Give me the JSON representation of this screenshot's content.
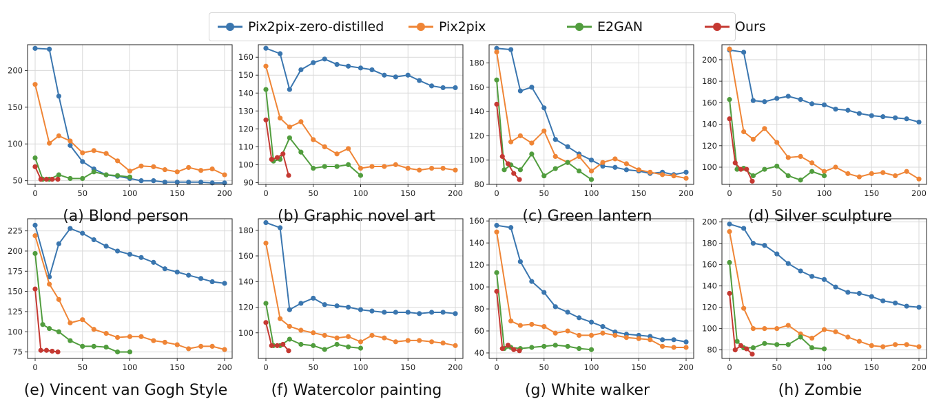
{
  "legend": [
    {
      "name": "Pix2pix-zero-distilled",
      "color": "#3a76af"
    },
    {
      "name": "Pix2pix",
      "color": "#ef8536"
    },
    {
      "name": "E2GAN",
      "color": "#519d3e"
    },
    {
      "name": "Ours",
      "color": "#c53932"
    }
  ],
  "chart_data": [
    {
      "type": "line",
      "title": "(a) Blond person",
      "ylim": [
        45,
        235
      ],
      "yticks": [
        50,
        100,
        150,
        200
      ],
      "xlim": [
        -8,
        208
      ],
      "xticks": [
        0,
        50,
        100,
        150,
        200
      ],
      "grid": true,
      "series": [
        {
          "name": "Pix2pix-zero-distilled",
          "x": [
            0,
            15,
            25,
            37,
            50,
            62,
            75,
            87,
            100,
            112,
            125,
            137,
            150,
            162,
            175,
            187,
            200
          ],
          "y": [
            230,
            229,
            165,
            98,
            76,
            66,
            58,
            56,
            53,
            50,
            50,
            48,
            48,
            48,
            48,
            47,
            47
          ]
        },
        {
          "name": "Pix2pix",
          "x": [
            0,
            15,
            25,
            37,
            50,
            62,
            75,
            87,
            100,
            112,
            125,
            137,
            150,
            162,
            175,
            187,
            200
          ],
          "y": [
            181,
            101,
            111,
            104,
            88,
            91,
            87,
            77,
            63,
            70,
            69,
            65,
            62,
            68,
            64,
            66,
            58
          ]
        },
        {
          "name": "E2GAN",
          "x": [
            0,
            8,
            15,
            25,
            37,
            50,
            62,
            75,
            87,
            100
          ],
          "y": [
            81,
            52,
            52,
            58,
            53,
            53,
            62,
            58,
            57,
            55
          ]
        },
        {
          "name": "Ours",
          "x": [
            0,
            6,
            12,
            18,
            24
          ],
          "y": [
            69,
            52,
            52,
            52,
            52
          ]
        }
      ]
    },
    {
      "type": "line",
      "title": "(b) Graphic novel art",
      "ylim": [
        89,
        167
      ],
      "yticks": [
        90,
        100,
        110,
        120,
        130,
        140,
        150,
        160
      ],
      "xlim": [
        -8,
        208
      ],
      "xticks": [
        0,
        50,
        100,
        150,
        200
      ],
      "grid": true,
      "series": [
        {
          "name": "Pix2pix-zero-distilled",
          "x": [
            0,
            15,
            25,
            37,
            50,
            62,
            75,
            87,
            100,
            112,
            125,
            137,
            150,
            162,
            175,
            187,
            200
          ],
          "y": [
            165,
            162,
            142,
            153,
            157,
            159,
            156,
            155,
            154,
            153,
            150,
            149,
            150,
            147,
            144,
            143,
            143
          ]
        },
        {
          "name": "Pix2pix",
          "x": [
            0,
            15,
            25,
            37,
            50,
            62,
            75,
            87,
            100,
            112,
            125,
            137,
            150,
            162,
            175,
            187,
            200
          ],
          "y": [
            155,
            126,
            121,
            124,
            114,
            110,
            106,
            109,
            98,
            99,
            99,
            100,
            98,
            97,
            98,
            98,
            97
          ]
        },
        {
          "name": "E2GAN",
          "x": [
            0,
            8,
            15,
            25,
            37,
            50,
            62,
            75,
            87,
            100
          ],
          "y": [
            142,
            102,
            103,
            115,
            107,
            98,
            99,
            99,
            100,
            94
          ]
        },
        {
          "name": "Ours",
          "x": [
            0,
            6,
            12,
            18,
            24
          ],
          "y": [
            125,
            103,
            104,
            106,
            94
          ]
        }
      ]
    },
    {
      "type": "line",
      "title": "(c) Green lantern",
      "ylim": [
        80,
        195
      ],
      "yticks": [
        80,
        100,
        120,
        140,
        160,
        180
      ],
      "xlim": [
        -8,
        208
      ],
      "xticks": [
        0,
        50,
        100,
        150,
        200
      ],
      "grid": true,
      "series": [
        {
          "name": "Pix2pix-zero-distilled",
          "x": [
            0,
            15,
            25,
            37,
            50,
            62,
            75,
            87,
            100,
            112,
            125,
            137,
            150,
            162,
            175,
            187,
            200
          ],
          "y": [
            192,
            191,
            157,
            160,
            143,
            117,
            111,
            105,
            100,
            95,
            94,
            92,
            91,
            89,
            90,
            88,
            90
          ]
        },
        {
          "name": "Pix2pix",
          "x": [
            0,
            15,
            25,
            37,
            50,
            62,
            75,
            87,
            100,
            112,
            125,
            137,
            150,
            162,
            175,
            187,
            200
          ],
          "y": [
            189,
            115,
            120,
            114,
            124,
            103,
            98,
            103,
            91,
            98,
            101,
            97,
            92,
            90,
            88,
            87,
            85
          ]
        },
        {
          "name": "E2GAN",
          "x": [
            0,
            8,
            15,
            25,
            37,
            50,
            62,
            75,
            87,
            100
          ],
          "y": [
            166,
            92,
            96,
            92,
            105,
            87,
            93,
            98,
            91,
            84
          ]
        },
        {
          "name": "Ours",
          "x": [
            0,
            6,
            12,
            18,
            24
          ],
          "y": [
            146,
            103,
            97,
            89,
            84
          ]
        }
      ]
    },
    {
      "type": "line",
      "title": "(d) Silver sculpture",
      "ylim": [
        84,
        214
      ],
      "yticks": [
        100,
        120,
        140,
        160,
        180,
        200
      ],
      "xlim": [
        -8,
        208
      ],
      "xticks": [
        0,
        50,
        100,
        150,
        200
      ],
      "grid": true,
      "series": [
        {
          "name": "Pix2pix-zero-distilled",
          "x": [
            0,
            15,
            25,
            37,
            50,
            62,
            75,
            87,
            100,
            112,
            125,
            137,
            150,
            162,
            175,
            187,
            200
          ],
          "y": [
            209,
            207,
            162,
            161,
            164,
            166,
            163,
            159,
            158,
            154,
            153,
            150,
            148,
            147,
            146,
            145,
            142
          ]
        },
        {
          "name": "Pix2pix",
          "x": [
            0,
            15,
            25,
            37,
            50,
            62,
            75,
            87,
            100,
            112,
            125,
            137,
            150,
            162,
            175,
            187,
            200
          ],
          "y": [
            210,
            133,
            126,
            136,
            123,
            109,
            110,
            104,
            96,
            100,
            94,
            91,
            94,
            95,
            92,
            96,
            89
          ]
        },
        {
          "name": "E2GAN",
          "x": [
            0,
            8,
            15,
            25,
            37,
            50,
            62,
            75,
            87,
            100
          ],
          "y": [
            163,
            98,
            99,
            92,
            98,
            101,
            92,
            88,
            96,
            92
          ]
        },
        {
          "name": "Ours",
          "x": [
            0,
            6,
            12,
            18,
            24
          ],
          "y": [
            145,
            104,
            98,
            98,
            87
          ]
        }
      ]
    },
    {
      "type": "line",
      "title": "(e) Vincent van Gogh Style",
      "ylim": [
        67,
        240
      ],
      "yticks": [
        75,
        100,
        125,
        150,
        175,
        200,
        225
      ],
      "xlim": [
        -8,
        208
      ],
      "xticks": [
        0,
        50,
        100,
        150,
        200
      ],
      "grid": true,
      "series": [
        {
          "name": "Pix2pix-zero-distilled",
          "x": [
            0,
            15,
            25,
            37,
            50,
            62,
            75,
            87,
            100,
            112,
            125,
            137,
            150,
            162,
            175,
            187,
            200
          ],
          "y": [
            232,
            168,
            209,
            228,
            222,
            214,
            206,
            200,
            196,
            192,
            186,
            178,
            174,
            170,
            166,
            162,
            160
          ]
        },
        {
          "name": "Pix2pix",
          "x": [
            0,
            15,
            25,
            37,
            50,
            62,
            75,
            87,
            100,
            112,
            125,
            137,
            150,
            162,
            175,
            187,
            200
          ],
          "y": [
            219,
            159,
            140,
            111,
            115,
            103,
            98,
            93,
            94,
            94,
            89,
            87,
            84,
            79,
            82,
            82,
            78
          ]
        },
        {
          "name": "E2GAN",
          "x": [
            0,
            8,
            15,
            25,
            37,
            50,
            62,
            75,
            87,
            100
          ],
          "y": [
            197,
            109,
            104,
            100,
            89,
            82,
            82,
            81,
            75,
            75
          ]
        },
        {
          "name": "Ours",
          "x": [
            0,
            6,
            12,
            18,
            24
          ],
          "y": [
            153,
            77,
            77,
            76,
            75
          ]
        }
      ]
    },
    {
      "type": "line",
      "title": "(f) Watercolor painting",
      "ylim": [
        80,
        189
      ],
      "yticks": [
        100,
        120,
        140,
        160,
        180
      ],
      "xlim": [
        -8,
        208
      ],
      "xticks": [
        0,
        50,
        100,
        150,
        200
      ],
      "grid": true,
      "series": [
        {
          "name": "Pix2pix-zero-distilled",
          "x": [
            0,
            15,
            25,
            37,
            50,
            62,
            75,
            87,
            100,
            112,
            125,
            137,
            150,
            162,
            175,
            187,
            200
          ],
          "y": [
            186,
            182,
            118,
            123,
            127,
            122,
            121,
            120,
            118,
            117,
            116,
            116,
            116,
            115,
            116,
            116,
            115
          ]
        },
        {
          "name": "Pix2pix",
          "x": [
            0,
            15,
            25,
            37,
            50,
            62,
            75,
            87,
            100,
            112,
            125,
            137,
            150,
            162,
            175,
            187,
            200
          ],
          "y": [
            170,
            111,
            105,
            102,
            100,
            98,
            96,
            97,
            93,
            98,
            96,
            93,
            94,
            94,
            93,
            92,
            90
          ]
        },
        {
          "name": "E2GAN",
          "x": [
            0,
            8,
            15,
            25,
            37,
            50,
            62,
            75,
            87,
            100
          ],
          "y": [
            123,
            90,
            90,
            95,
            91,
            90,
            87,
            91,
            89,
            88
          ]
        },
        {
          "name": "Ours",
          "x": [
            0,
            6,
            12,
            18,
            24
          ],
          "y": [
            108,
            90,
            90,
            91,
            86
          ]
        }
      ]
    },
    {
      "type": "line",
      "title": "(g) White walker",
      "ylim": [
        35,
        162
      ],
      "yticks": [
        40,
        60,
        80,
        100,
        120,
        140,
        160
      ],
      "xlim": [
        -8,
        208
      ],
      "xticks": [
        0,
        50,
        100,
        150,
        200
      ],
      "grid": true,
      "series": [
        {
          "name": "Pix2pix-zero-distilled",
          "x": [
            0,
            15,
            25,
            37,
            50,
            62,
            75,
            87,
            100,
            112,
            125,
            137,
            150,
            162,
            175,
            187,
            200
          ],
          "y": [
            156,
            154,
            123,
            105,
            95,
            82,
            77,
            72,
            68,
            64,
            59,
            57,
            56,
            55,
            52,
            52,
            50
          ]
        },
        {
          "name": "Pix2pix",
          "x": [
            0,
            15,
            25,
            37,
            50,
            62,
            75,
            87,
            100,
            112,
            125,
            137,
            150,
            162,
            175,
            187,
            200
          ],
          "y": [
            150,
            69,
            65,
            66,
            64,
            58,
            60,
            56,
            56,
            58,
            56,
            54,
            53,
            52,
            46,
            45,
            45
          ]
        },
        {
          "name": "E2GAN",
          "x": [
            0,
            8,
            15,
            25,
            37,
            50,
            62,
            75,
            87,
            100
          ],
          "y": [
            113,
            44,
            45,
            44,
            45,
            46,
            47,
            46,
            44,
            43
          ]
        },
        {
          "name": "Ours",
          "x": [
            0,
            6,
            12,
            18,
            24
          ],
          "y": [
            96,
            44,
            47,
            43,
            42
          ]
        }
      ]
    },
    {
      "type": "line",
      "title": "(h) Zombie",
      "ylim": [
        72,
        203
      ],
      "yticks": [
        80,
        100,
        120,
        140,
        160,
        180,
        200
      ],
      "xlim": [
        -8,
        208
      ],
      "xticks": [
        0,
        50,
        100,
        150,
        200
      ],
      "grid": true,
      "series": [
        {
          "name": "Pix2pix-zero-distilled",
          "x": [
            0,
            15,
            25,
            37,
            50,
            62,
            75,
            87,
            100,
            112,
            125,
            137,
            150,
            162,
            175,
            187,
            200
          ],
          "y": [
            198,
            194,
            180,
            178,
            170,
            161,
            154,
            149,
            146,
            139,
            134,
            133,
            130,
            126,
            124,
            121,
            120
          ]
        },
        {
          "name": "Pix2pix",
          "x": [
            0,
            15,
            25,
            37,
            50,
            62,
            75,
            87,
            100,
            112,
            125,
            137,
            150,
            162,
            175,
            187,
            200
          ],
          "y": [
            191,
            119,
            100,
            100,
            100,
            103,
            95,
            91,
            99,
            97,
            92,
            88,
            84,
            83,
            85,
            85,
            83
          ]
        },
        {
          "name": "E2GAN",
          "x": [
            0,
            8,
            15,
            25,
            37,
            50,
            62,
            75,
            87,
            100
          ],
          "y": [
            162,
            88,
            82,
            82,
            86,
            85,
            85,
            92,
            82,
            81
          ]
        },
        {
          "name": "Ours",
          "x": [
            0,
            6,
            12,
            18,
            24
          ],
          "y": [
            133,
            80,
            84,
            81,
            76
          ]
        }
      ]
    }
  ]
}
